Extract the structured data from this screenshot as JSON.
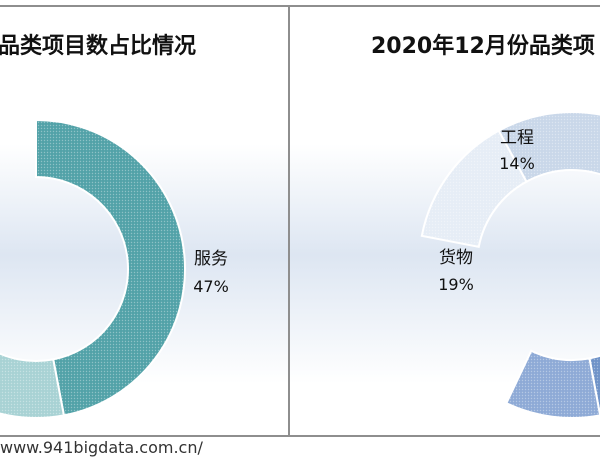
{
  "chart_data": [
    {
      "type": "pie",
      "title": "品类项目数占比情况",
      "slices": [
        {
          "label": "服务",
          "pct_label": "47%",
          "value": 47,
          "color": "#52a2a8"
        },
        {
          "label": "",
          "pct_label": "",
          "value": 12,
          "color": "#a8d2d4"
        },
        {
          "label": "",
          "pct_label": "",
          "value": 10,
          "color": "#b5dadc"
        }
      ]
    },
    {
      "type": "pie",
      "title": "2020年12月份品类项",
      "slices": [
        {
          "label": "工程",
          "pct_label": "14%",
          "value": 14,
          "color": "#e6edf6"
        },
        {
          "label": "货物",
          "pct_label": "19%",
          "value": 19,
          "color": "#c9d7e9"
        },
        {
          "label": "",
          "pct_label": "",
          "value": 36,
          "color": "#6f93c8"
        },
        {
          "label": "",
          "pct_label": "",
          "value": 10,
          "color": "#8eaad6"
        }
      ]
    }
  ],
  "footer": {
    "source": "www.941bigdata.com.cn/"
  }
}
